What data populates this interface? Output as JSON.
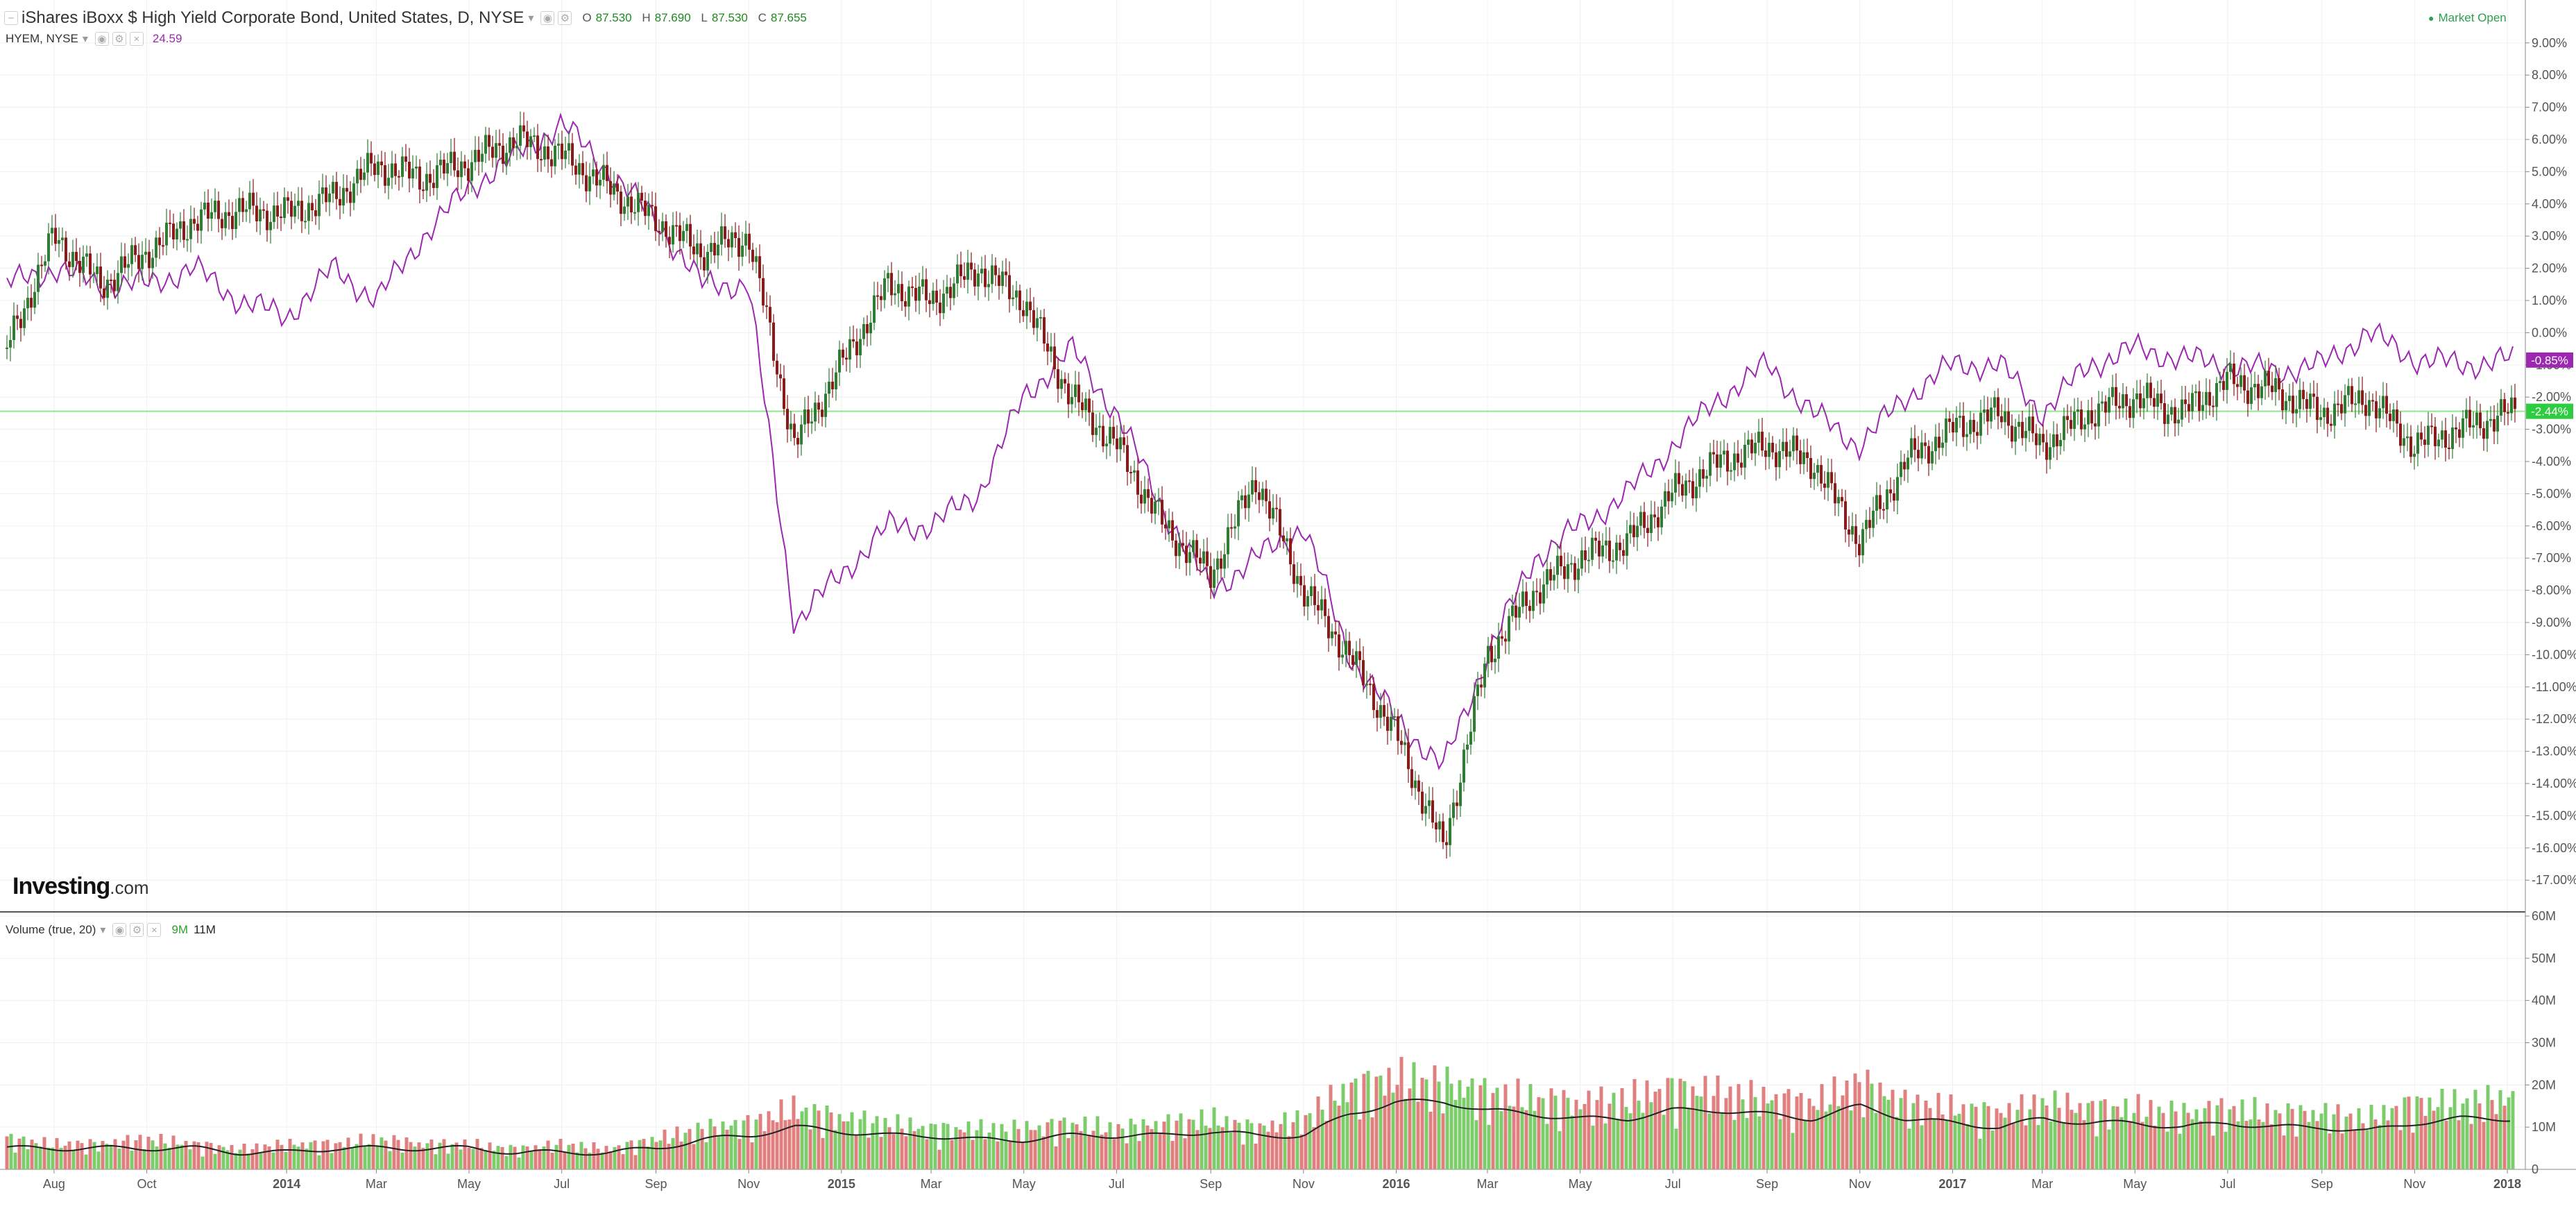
{
  "header": {
    "title": "iShares iBoxx $ High Yield Corporate Bond, United States, D, NYSE",
    "ohlc": [
      {
        "key": "O",
        "value": "87.530"
      },
      {
        "key": "H",
        "value": "87.690"
      },
      {
        "key": "L",
        "value": "87.530"
      },
      {
        "key": "C",
        "value": "87.655"
      }
    ],
    "compare_symbol": "HYEM, NYSE",
    "compare_value": "24.59",
    "market_status": "Market Open",
    "volume_label": "Volume (true, 20)",
    "volume_values": [
      "9M",
      "11M"
    ]
  },
  "logo": {
    "main": "Investing",
    "suffix": ".com"
  },
  "colors": {
    "up": "#2e7d32",
    "down": "#8b1a1a",
    "compare": "#9c27b0",
    "vol_up": "#7ccc6c",
    "vol_down": "#e07f7f",
    "market_open": "#2e9e4f"
  },
  "chart_data": [
    {
      "type": "candlestick",
      "series": [
        {
          "name": "iShares iBoxx $ High Yield Corporate Bond",
          "style": "candles",
          "x": [
            "2013-07",
            "2013-08",
            "2013-09",
            "2013-10",
            "2013-11",
            "2013-12",
            "2014-01",
            "2014-02",
            "2014-03",
            "2014-04",
            "2014-05",
            "2014-06",
            "2014-07",
            "2014-08",
            "2014-09",
            "2014-10",
            "2014-11",
            "2014-12",
            "2015-01",
            "2015-02",
            "2015-03",
            "2015-04",
            "2015-05",
            "2015-06",
            "2015-07",
            "2015-08",
            "2015-09",
            "2015-10",
            "2015-11",
            "2015-12",
            "2016-01",
            "2016-02",
            "2016-03",
            "2016-04",
            "2016-05",
            "2016-06",
            "2016-07",
            "2016-08",
            "2016-09",
            "2016-10",
            "2016-11",
            "2016-12",
            "2017-01",
            "2017-02",
            "2017-03",
            "2017-04",
            "2017-05",
            "2017-06",
            "2017-07",
            "2017-08",
            "2017-09",
            "2017-10",
            "2017-11",
            "2017-12",
            "2018-01"
          ],
          "values": [
            -0.5,
            3.0,
            1.5,
            2.5,
            3.5,
            3.8,
            3.7,
            4.2,
            5.2,
            4.8,
            5.3,
            6.0,
            5.5,
            4.5,
            3.5,
            2.5,
            3.0,
            -3.5,
            -1.0,
            1.5,
            1.0,
            2.0,
            1.0,
            -2.0,
            -3.5,
            -6.0,
            -7.5,
            -4.5,
            -8.0,
            -10.0,
            -12.5,
            -16.0,
            -10.0,
            -8.0,
            -7.0,
            -6.5,
            -5.0,
            -4.0,
            -3.5,
            -4.0,
            -6.5,
            -4.0,
            -3.0,
            -2.5,
            -3.5,
            -2.5,
            -2.0,
            -2.5,
            -1.5,
            -1.8,
            -2.5,
            -2.0,
            -3.5,
            -3.0,
            -2.5
          ]
        },
        {
          "name": "HYEM, NYSE",
          "style": "line",
          "x": [
            "2013-07",
            "2013-08",
            "2013-09",
            "2013-10",
            "2013-11",
            "2013-12",
            "2014-01",
            "2014-02",
            "2014-03",
            "2014-04",
            "2014-05",
            "2014-06",
            "2014-07",
            "2014-08",
            "2014-09",
            "2014-10",
            "2014-11",
            "2014-12",
            "2015-01",
            "2015-02",
            "2015-03",
            "2015-04",
            "2015-05",
            "2015-06",
            "2015-07",
            "2015-08",
            "2015-09",
            "2015-10",
            "2015-11",
            "2015-12",
            "2016-01",
            "2016-02",
            "2016-03",
            "2016-04",
            "2016-05",
            "2016-06",
            "2016-07",
            "2016-08",
            "2016-09",
            "2016-10",
            "2016-11",
            "2016-12",
            "2017-01",
            "2017-02",
            "2017-03",
            "2017-04",
            "2017-05",
            "2017-06",
            "2017-07",
            "2017-08",
            "2017-09",
            "2017-10",
            "2017-11",
            "2017-12",
            "2018-01"
          ],
          "values": [
            1.5,
            2.0,
            1.5,
            1.5,
            2.0,
            1.0,
            0.5,
            2.0,
            1.0,
            3.0,
            4.5,
            5.5,
            6.5,
            5.0,
            3.5,
            1.5,
            1.5,
            -9.0,
            -7.5,
            -6.0,
            -6.0,
            -5.0,
            -2.0,
            -0.5,
            -2.5,
            -5.5,
            -8.0,
            -7.0,
            -6.0,
            -10.0,
            -12.0,
            -13.5,
            -10.0,
            -7.0,
            -6.0,
            -5.0,
            -3.5,
            -2.0,
            -1.0,
            -2.5,
            -3.5,
            -2.0,
            -1.0,
            -1.0,
            -2.5,
            -1.0,
            -0.5,
            -0.8,
            -1.0,
            -1.2,
            -1.0,
            0.0,
            -0.8,
            -1.0,
            -0.85
          ]
        }
      ],
      "y_axis_ticks": [
        "9.00%",
        "8.00%",
        "7.00%",
        "6.00%",
        "5.00%",
        "4.00%",
        "3.00%",
        "2.00%",
        "1.00%",
        "0.00%",
        "-1.00%",
        "-2.00%",
        "-3.00%",
        "-4.00%",
        "-5.00%",
        "-6.00%",
        "-7.00%",
        "-8.00%",
        "-9.00%",
        "-10.00%",
        "-11.00%",
        "-12.00%",
        "-13.00%",
        "-14.00%",
        "-15.00%",
        "-16.00%",
        "-17.00%"
      ],
      "ylim": [
        -17.9,
        9.9
      ],
      "last_labels": [
        {
          "series": "HYEM, NYSE",
          "text": "-0.85%",
          "value": -0.85,
          "color": "#9c27b0"
        },
        {
          "series": "iShares iBoxx $ High Yield Corporate Bond",
          "text": "-2.44%",
          "value": -2.44,
          "color": "#2ecc40"
        }
      ],
      "horizontal_line": -2.44
    },
    {
      "type": "bar",
      "title": "Volume (true, 20)",
      "x": [
        "2013-07",
        "2013-08",
        "2013-09",
        "2013-10",
        "2013-11",
        "2013-12",
        "2014-01",
        "2014-02",
        "2014-03",
        "2014-04",
        "2014-05",
        "2014-06",
        "2014-07",
        "2014-08",
        "2014-09",
        "2014-10",
        "2014-11",
        "2014-12",
        "2015-01",
        "2015-02",
        "2015-03",
        "2015-04",
        "2015-05",
        "2015-06",
        "2015-07",
        "2015-08",
        "2015-09",
        "2015-10",
        "2015-11",
        "2015-12",
        "2016-01",
        "2016-02",
        "2016-03",
        "2016-04",
        "2016-05",
        "2016-06",
        "2016-07",
        "2016-08",
        "2016-09",
        "2016-10",
        "2016-11",
        "2016-12",
        "2017-01",
        "2017-02",
        "2017-03",
        "2017-04",
        "2017-05",
        "2017-06",
        "2017-07",
        "2017-08",
        "2017-09",
        "2017-10",
        "2017-11",
        "2017-12",
        "2018-01"
      ],
      "values": [
        6,
        5,
        5,
        6,
        5,
        4,
        5,
        5,
        6,
        5,
        5,
        4,
        5,
        4,
        6,
        8,
        9,
        12,
        10,
        9,
        8,
        8,
        8,
        9,
        8,
        9,
        10,
        8,
        10,
        16,
        18,
        17,
        15,
        14,
        13,
        14,
        16,
        15,
        14,
        13,
        17,
        13,
        12,
        11,
        13,
        12,
        12,
        11,
        12,
        11,
        11,
        10,
        13,
        13,
        14
      ],
      "moving_average": [
        5,
        5,
        5,
        5,
        5,
        4,
        4,
        5,
        5,
        5,
        5,
        4,
        4,
        4,
        5,
        7,
        8,
        10,
        9,
        8,
        8,
        7,
        7,
        8,
        8,
        8,
        9,
        8,
        8,
        13,
        16,
        16,
        14,
        13,
        12,
        12,
        14,
        14,
        13,
        12,
        15,
        12,
        11,
        10,
        12,
        11,
        11,
        10,
        11,
        10,
        10,
        9,
        11,
        12,
        12
      ],
      "y_axis_ticks": [
        "60M",
        "50M",
        "40M",
        "30M",
        "20M",
        "10M",
        "0"
      ],
      "ylim": [
        0,
        60
      ]
    }
  ],
  "x_axis_labels": [
    {
      "label": "Aug",
      "date": "2013-08"
    },
    {
      "label": "Oct",
      "date": "2013-10"
    },
    {
      "label": "2014",
      "date": "2014-01",
      "bold": true
    },
    {
      "label": "Mar",
      "date": "2014-03"
    },
    {
      "label": "May",
      "date": "2014-05"
    },
    {
      "label": "Jul",
      "date": "2014-07"
    },
    {
      "label": "Sep",
      "date": "2014-09"
    },
    {
      "label": "Nov",
      "date": "2014-11"
    },
    {
      "label": "2015",
      "date": "2015-01",
      "bold": true
    },
    {
      "label": "Mar",
      "date": "2015-03"
    },
    {
      "label": "May",
      "date": "2015-05"
    },
    {
      "label": "Jul",
      "date": "2015-07"
    },
    {
      "label": "Sep",
      "date": "2015-09"
    },
    {
      "label": "Nov",
      "date": "2015-11"
    },
    {
      "label": "2016",
      "date": "2016-01",
      "bold": true
    },
    {
      "label": "Mar",
      "date": "2016-03"
    },
    {
      "label": "May",
      "date": "2016-05"
    },
    {
      "label": "Jul",
      "date": "2016-07"
    },
    {
      "label": "Sep",
      "date": "2016-09"
    },
    {
      "label": "Nov",
      "date": "2016-11"
    },
    {
      "label": "2017",
      "date": "2017-01",
      "bold": true
    },
    {
      "label": "Mar",
      "date": "2017-03"
    },
    {
      "label": "May",
      "date": "2017-05"
    },
    {
      "label": "Jul",
      "date": "2017-07"
    },
    {
      "label": "Sep",
      "date": "2017-09"
    },
    {
      "label": "Nov",
      "date": "2017-11"
    },
    {
      "label": "2018",
      "date": "2018-01",
      "bold": true
    }
  ]
}
